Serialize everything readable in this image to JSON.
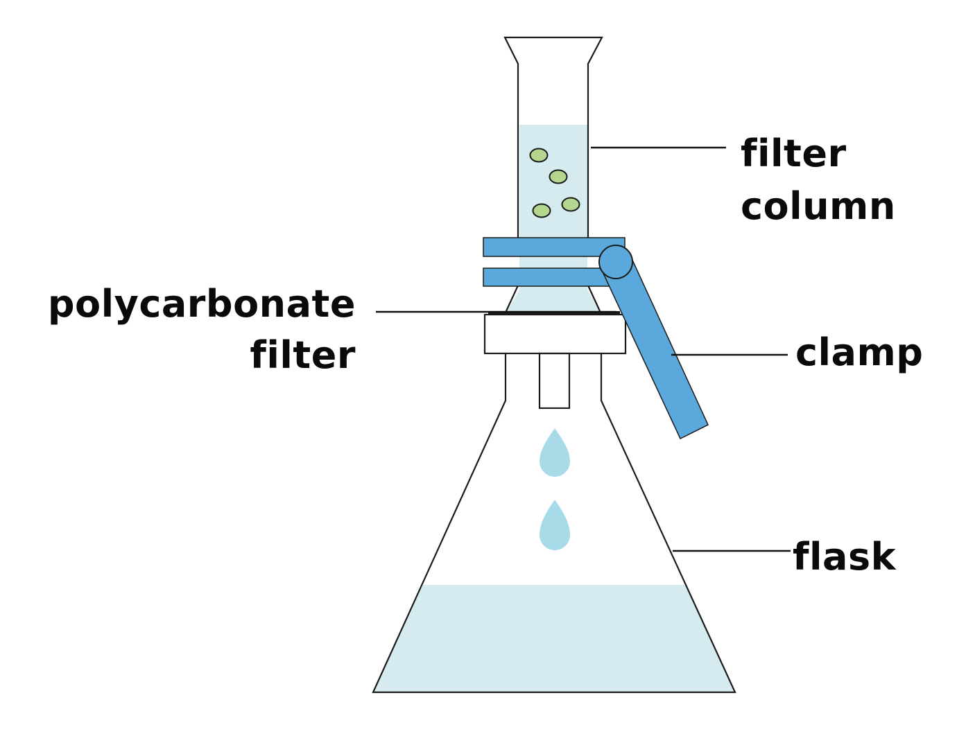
{
  "labels": {
    "filter_column_line1": "filter",
    "filter_column_line2": "column",
    "polycarbonate_filter_line1": "polycarbonate",
    "polycarbonate_filter_line2": "filter",
    "clamp": "clamp",
    "flask": "flask"
  },
  "colors": {
    "liquid": "#d5ebf0",
    "droplet": "#a6dbe7",
    "particle_fill": "#b4d68e",
    "clamp": "#5aa8dc",
    "outline": "#1a1a1a",
    "text": "#0a0a0a"
  }
}
